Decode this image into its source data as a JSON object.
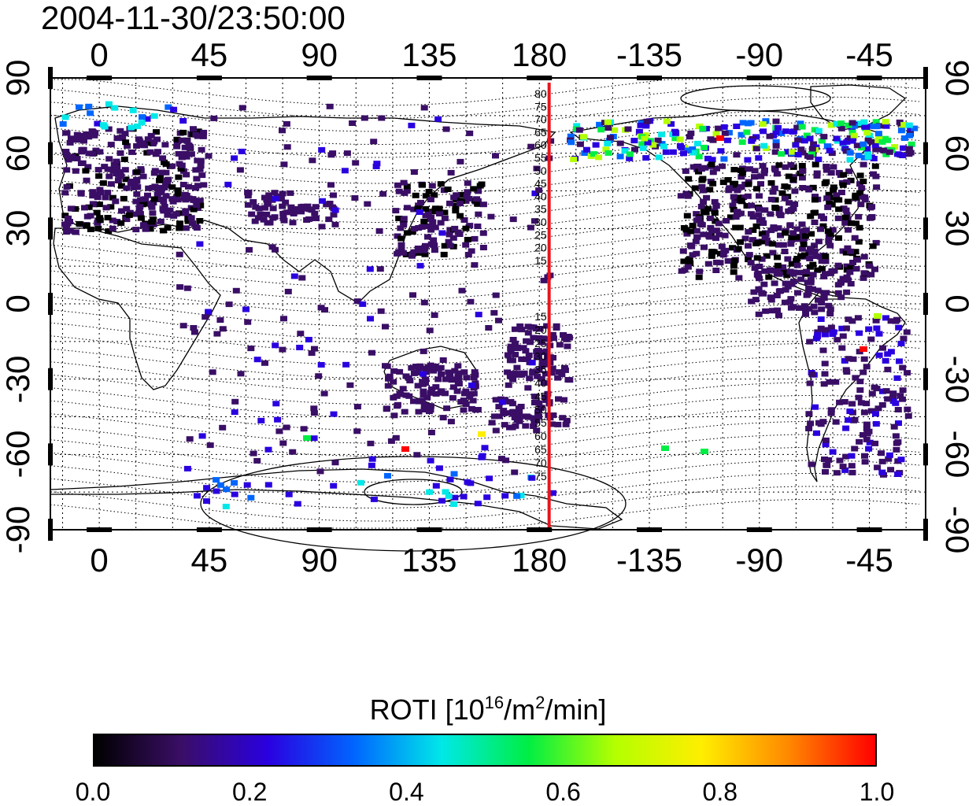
{
  "title": "2004-11-30/23:50:00",
  "map": {
    "top_lon_ticks": [
      "0",
      "45",
      "90",
      "135",
      "180",
      "-135",
      "-90",
      "-45"
    ],
    "bottom_lon_ticks": [
      "0",
      "45",
      "90",
      "135",
      "180",
      "-135",
      "-90",
      "-45"
    ],
    "left_lat_ticks": [
      "90",
      "60",
      "30",
      "0",
      "-30",
      "-60",
      "-90"
    ],
    "right_lat_ticks": [
      "90",
      "60",
      "30",
      "0",
      "-30",
      "-60",
      "-90"
    ],
    "lon_range": [
      -20,
      338
    ],
    "lat_range": [
      -90,
      90
    ],
    "meridian_marker": {
      "lon": 184,
      "color": "#e8141c"
    },
    "contour_labels_north": [
      "80",
      "75",
      "70",
      "65",
      "60",
      "55",
      "50",
      "45",
      "40",
      "35",
      "30",
      "25",
      "20",
      "15"
    ],
    "contour_labels_south": [
      "15",
      "20",
      "25",
      "30",
      "35",
      "40",
      "45",
      "50",
      "55",
      "60",
      "65",
      "70",
      "75"
    ]
  },
  "colorbar": {
    "title_prefix": "ROTI  [10",
    "title_exp1": "16",
    "title_mid": "/m",
    "title_exp2": "2",
    "title_suffix": "/min]",
    "ticks": [
      "0.0",
      "0.2",
      "0.4",
      "0.6",
      "0.8",
      "1.0"
    ],
    "range": [
      0.0,
      1.0
    ],
    "colors": [
      "#000000",
      "#3a0e66",
      "#2a00e0",
      "#0066ff",
      "#00e8e8",
      "#00ee44",
      "#b4ff00",
      "#ffee00",
      "#ff8800",
      "#ff0000"
    ]
  }
}
